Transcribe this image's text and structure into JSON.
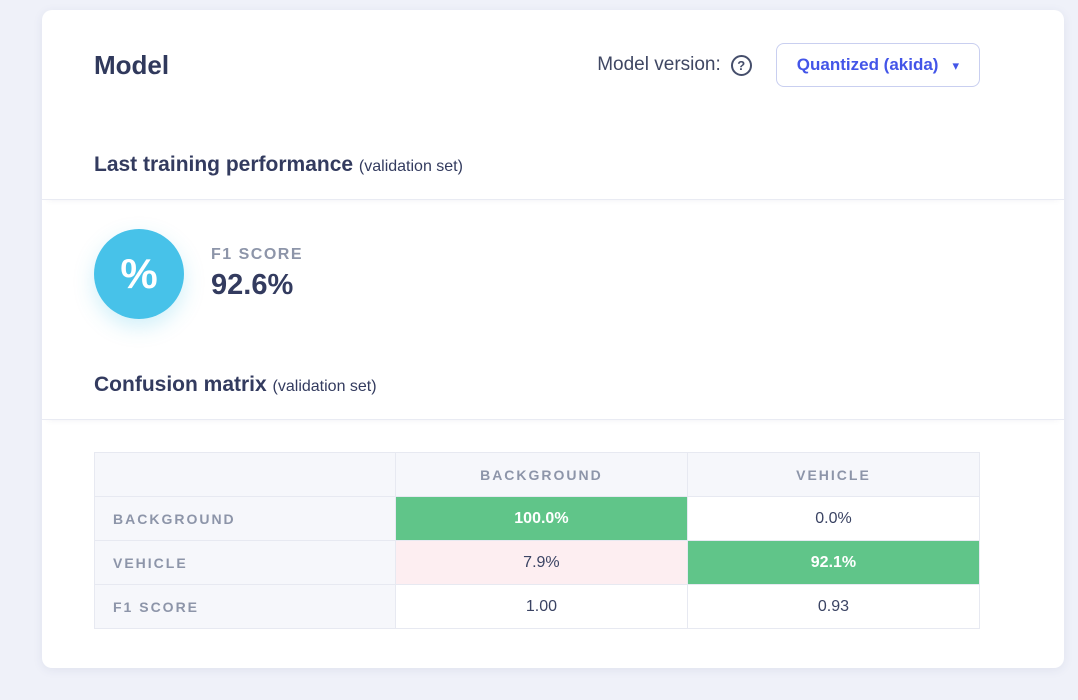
{
  "header": {
    "title": "Model",
    "version_label": "Model version:",
    "dropdown_value": "Quantized (akida)"
  },
  "icons": {
    "help": "?",
    "caret": "▾",
    "percent": "%"
  },
  "training": {
    "heading": "Last training performance",
    "heading_suffix": "(validation set)",
    "f1_label": "F1 SCORE",
    "f1_value": "92.6%"
  },
  "confusion": {
    "heading": "Confusion matrix",
    "heading_suffix": "(validation set)",
    "columns": [
      "BACKGROUND",
      "VEHICLE"
    ],
    "rows": [
      {
        "label": "BACKGROUND",
        "cells": [
          {
            "text": "100.0%",
            "state": "correct"
          },
          {
            "text": "0.0%",
            "state": "neutral"
          }
        ]
      },
      {
        "label": "VEHICLE",
        "cells": [
          {
            "text": "7.9%",
            "state": "incorrect"
          },
          {
            "text": "92.1%",
            "state": "correct"
          }
        ]
      },
      {
        "label": "F1 SCORE",
        "cells": [
          {
            "text": "1.00",
            "state": "neutral"
          },
          {
            "text": "0.93",
            "state": "neutral"
          }
        ]
      }
    ]
  },
  "colors": {
    "accent_blue": "#4355e8",
    "correct_green": "#60c589",
    "incorrect_pink": "#fdeef1",
    "icon_cyan": "#47c2e9",
    "page_background": "#eff1f9"
  }
}
